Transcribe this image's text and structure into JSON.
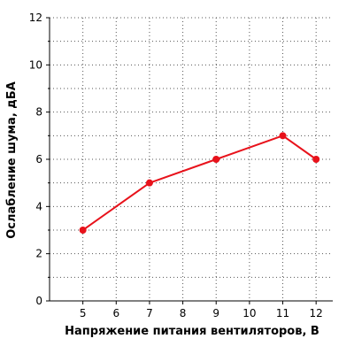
{
  "chart_data": {
    "type": "line",
    "title": "",
    "xlabel": "Напряжение питания вентиляторов, В",
    "ylabel": "Ослабление шума, дБА",
    "xlim": [
      4,
      12.5
    ],
    "ylim": [
      0,
      12
    ],
    "x_ticks": [
      5,
      6,
      7,
      8,
      9,
      10,
      11,
      12
    ],
    "y_ticks": [
      0,
      2,
      4,
      6,
      8,
      10,
      12
    ],
    "grid": true,
    "legend": "none",
    "series": [
      {
        "color": "#e8121b",
        "x": [
          5,
          7,
          9,
          11,
          12
        ],
        "y": [
          3,
          5,
          6,
          7,
          6
        ]
      }
    ]
  }
}
